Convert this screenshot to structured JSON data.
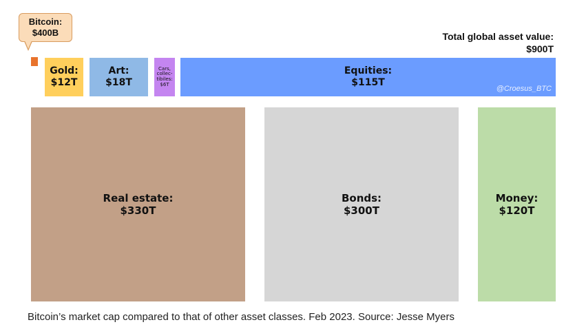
{
  "chart_data": {
    "type": "treemap",
    "unit": "USD",
    "total": {
      "label": "Total global asset value:",
      "value_text": "$900T"
    },
    "callout": {
      "label": "Bitcoin:",
      "value_text": "$400B"
    },
    "items": [
      {
        "name": "Bitcoin",
        "value_usd": 400000000000.0,
        "color": "#e8732c"
      },
      {
        "name": "Gold",
        "label": "Gold:",
        "value_text": "$12T",
        "value_usd": 12000000000000.0,
        "color": "#ffcf5c"
      },
      {
        "name": "Art",
        "label": "Art:",
        "value_text": "$18T",
        "value_usd": 18000000000000.0,
        "color": "#8fb9e6"
      },
      {
        "name": "Cars, collectibles",
        "label": "Cars, collec-tibiles:",
        "value_text": "$6T",
        "value_usd": 6000000000000.0,
        "color": "#c485f0"
      },
      {
        "name": "Equities",
        "label": "Equities:",
        "value_text": "$115T",
        "value_usd": 115000000000000.0,
        "color": "#6b9cff"
      },
      {
        "name": "Real estate",
        "label": "Real estate:",
        "value_text": "$330T",
        "value_usd": 330000000000000.0,
        "color": "#c2a087"
      },
      {
        "name": "Bonds",
        "label": "Bonds:",
        "value_text": "$300T",
        "value_usd": 300000000000000.0,
        "color": "#d6d6d6"
      },
      {
        "name": "Money",
        "label": "Money:",
        "value_text": "$120T",
        "value_usd": 120000000000000.0,
        "color": "#bcdca8"
      }
    ]
  },
  "watermark": "@Croesus_BTC",
  "caption": "Bitcoin’s market cap compared to that of other asset classes. Feb 2023. Source: Jesse Myers"
}
